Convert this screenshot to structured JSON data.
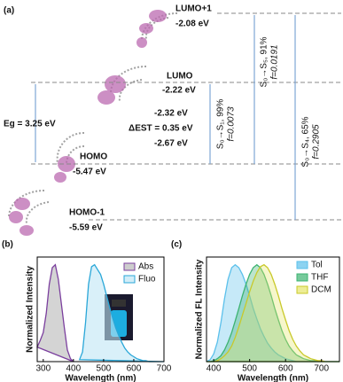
{
  "panel_a": {
    "label": "(a)",
    "levels": [
      {
        "name": "LUMO+1",
        "energy": "-2.08 eV"
      },
      {
        "name": "LUMO",
        "energy": "-2.22 eV"
      },
      {
        "name": "HOMO",
        "energy": "-5.47 eV"
      },
      {
        "name": "HOMO-1",
        "energy": "-5.59 eV"
      }
    ],
    "gap": "Eg = 3.25 eV",
    "singlet_triplet": [
      "-2.32 eV",
      "ΔEST = 0.35 eV",
      "-2.67 eV"
    ],
    "transitions": [
      {
        "label": "S₀→S₁, 99%",
        "f": "f=0.0073"
      },
      {
        "label": "S₀→S₅, 91%",
        "f": "f=0.0191"
      },
      {
        "label": "S₀→S₄, 65%",
        "f": "f=0.2905"
      }
    ]
  },
  "chart_data": [
    {
      "type": "line",
      "panel": "(b)",
      "x_label": "Wavelength (nm)",
      "y_label": "Normalized Intensity",
      "x": [
        280,
        290,
        300,
        310,
        320,
        330,
        340,
        350,
        360,
        370,
        380,
        390,
        400,
        410,
        420,
        430,
        440,
        450,
        460,
        470,
        480,
        490,
        500,
        510,
        520,
        530,
        540,
        550,
        560,
        570,
        580,
        590,
        600,
        610,
        620,
        630,
        640,
        650,
        660,
        670,
        680,
        690,
        700
      ],
      "series": [
        {
          "name": "Abs",
          "color": "#7b3f9e",
          "fill": "#b8b8b8",
          "values": [
            0.15,
            0.22,
            0.3,
            0.5,
            0.8,
            0.97,
            1.0,
            0.85,
            0.6,
            0.35,
            0.12,
            0.03,
            0.0,
            null,
            null,
            null,
            null,
            null,
            null,
            null,
            null,
            null,
            null,
            null,
            null,
            null,
            null,
            null,
            null,
            null,
            null,
            null,
            null,
            null,
            null,
            null,
            null,
            null,
            null,
            null,
            null,
            null,
            null
          ]
        },
        {
          "name": "Fluo",
          "color": "#2aa7d8",
          "fill": "#bfe6f5",
          "values": [
            null,
            null,
            null,
            null,
            null,
            null,
            null,
            null,
            null,
            null,
            null,
            null,
            null,
            null,
            0.02,
            0.1,
            0.4,
            0.8,
            0.98,
            1.0,
            0.95,
            0.9,
            0.8,
            0.68,
            0.56,
            0.45,
            0.35,
            0.27,
            0.2,
            0.14,
            0.1,
            0.07,
            0.05,
            0.03,
            0.02,
            0.01,
            0.01,
            0,
            0,
            0,
            0,
            0,
            0
          ]
        }
      ],
      "xlim": [
        280,
        700
      ],
      "xticks": [
        300,
        400,
        500,
        600,
        700
      ],
      "ylim": [
        0,
        1.08
      ]
    },
    {
      "type": "line",
      "panel": "(c)",
      "x_label": "Wavelength (nm)",
      "y_label": "Normalized FL Intensity",
      "x": [
        380,
        390,
        400,
        410,
        420,
        430,
        440,
        450,
        460,
        470,
        480,
        490,
        500,
        510,
        520,
        530,
        540,
        550,
        560,
        570,
        580,
        590,
        600,
        610,
        620,
        630,
        640,
        650,
        660,
        670,
        680,
        690,
        700,
        710,
        720,
        730,
        740,
        750
      ],
      "series": [
        {
          "name": "Tol",
          "color": "#5bc0eb",
          "fill": "#5bc0eb",
          "values": [
            0,
            0.02,
            0.08,
            0.2,
            0.4,
            0.65,
            0.85,
            0.97,
            1.0,
            0.97,
            0.9,
            0.8,
            0.68,
            0.55,
            0.44,
            0.34,
            0.26,
            0.19,
            0.14,
            0.1,
            0.07,
            0.05,
            0.03,
            0.02,
            0.01,
            0,
            0,
            0,
            0,
            0,
            0,
            0,
            0,
            0,
            0,
            0,
            0,
            0
          ]
        },
        {
          "name": "THF",
          "color": "#3cb371",
          "fill": "#3cb371",
          "values": [
            0,
            0,
            0.01,
            0.03,
            0.06,
            0.12,
            0.2,
            0.3,
            0.42,
            0.55,
            0.68,
            0.8,
            0.9,
            0.97,
            1.0,
            0.97,
            0.9,
            0.8,
            0.68,
            0.55,
            0.43,
            0.32,
            0.23,
            0.16,
            0.11,
            0.07,
            0.05,
            0.03,
            0.02,
            0.01,
            0.01,
            0,
            0,
            0,
            0,
            0,
            0,
            0
          ]
        },
        {
          "name": "DCM",
          "color": "#c9c92a",
          "fill": "#e5e56a",
          "values": [
            0,
            0,
            0,
            0.01,
            0.03,
            0.06,
            0.1,
            0.16,
            0.25,
            0.36,
            0.48,
            0.6,
            0.72,
            0.83,
            0.92,
            0.98,
            1.0,
            0.97,
            0.9,
            0.8,
            0.68,
            0.55,
            0.43,
            0.32,
            0.23,
            0.16,
            0.11,
            0.07,
            0.05,
            0.03,
            0.02,
            0.01,
            0.01,
            0,
            0,
            0,
            0,
            0
          ]
        }
      ],
      "xlim": [
        380,
        750
      ],
      "xticks": [
        400,
        500,
        600,
        700
      ],
      "ylim": [
        0,
        1.08
      ]
    }
  ]
}
